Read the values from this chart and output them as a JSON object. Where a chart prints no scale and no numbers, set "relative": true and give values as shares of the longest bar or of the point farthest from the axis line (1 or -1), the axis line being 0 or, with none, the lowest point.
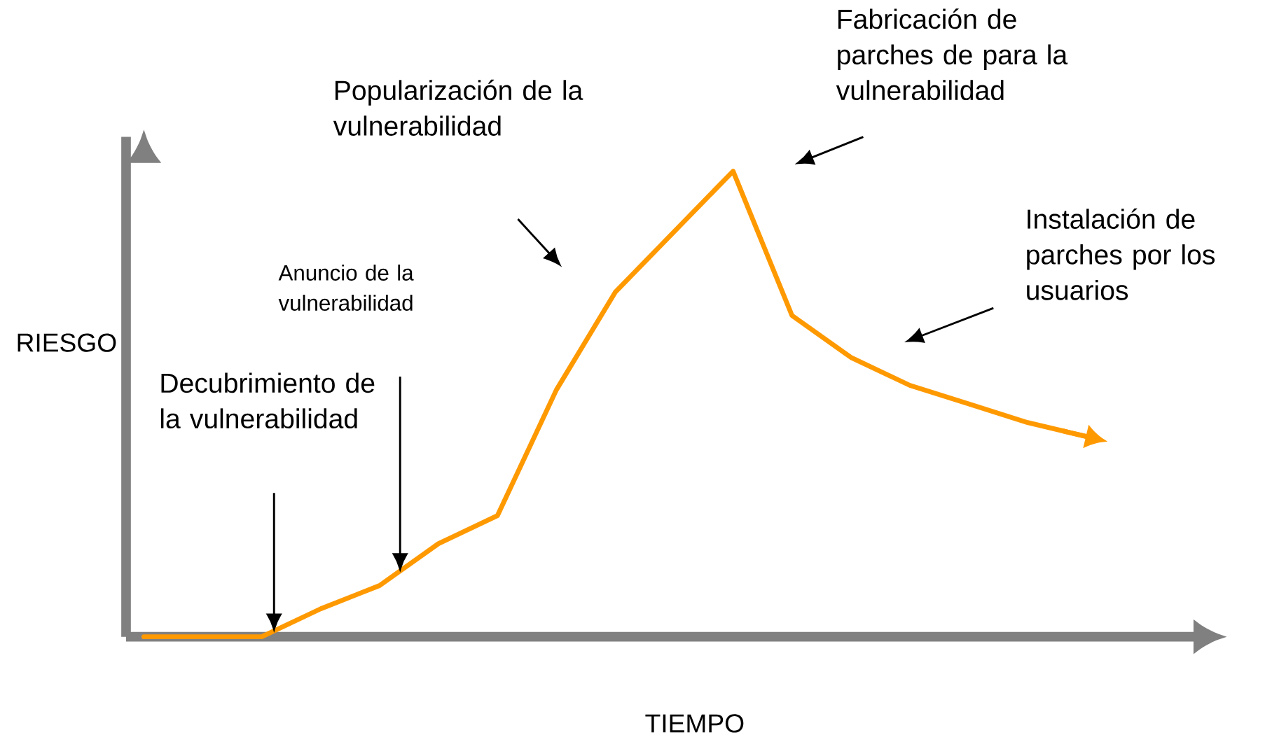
{
  "chart_data": {
    "type": "line",
    "relative": true,
    "xlabel": "TIEMPO",
    "ylabel": "RIESGO",
    "categories": [
      null,
      null,
      null,
      null,
      null,
      null,
      null,
      null,
      null,
      null,
      null,
      null,
      null,
      null,
      null,
      null,
      null
    ],
    "series": [
      {
        "color": "#ff9900",
        "values": [
          0,
          0,
          0,
          0.06,
          0.11,
          0.2,
          0.26,
          0.53,
          0.74,
          0.87,
          1,
          0.69,
          0.6,
          0.54,
          0.5,
          0.46,
          0.43
        ]
      }
    ],
    "marker": "none",
    "line_style": "solid",
    "annotations": [
      "Decubrimiento de la vulnerabilidad",
      "Anuncio de la vulnerabilidad",
      "Popularización de la vulnerabilidad",
      "Fabricación de parches de para la vulnerabilidad",
      "Instalación de parches por los usuarios"
    ]
  }
}
